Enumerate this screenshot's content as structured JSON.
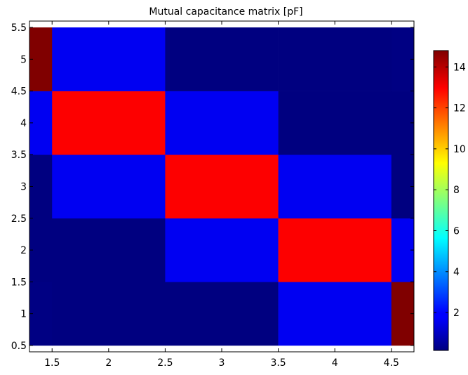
{
  "chart_data": {
    "type": "heatmap",
    "title": "Mutual capacitance matrix [pF]",
    "xlabel": "",
    "ylabel": "",
    "xlim": [
      1.3,
      4.7
    ],
    "ylim": [
      0.4,
      5.6
    ],
    "x_ticks": [
      1.5,
      2,
      2.5,
      3,
      3.5,
      4,
      4.5
    ],
    "x_tick_labels": [
      "1.5",
      "2",
      "2.5",
      "3",
      "3.5",
      "4",
      "4.5"
    ],
    "y_ticks": [
      0.5,
      1,
      1.5,
      2,
      2.5,
      3,
      3.5,
      4,
      4.5,
      5,
      5.5
    ],
    "y_tick_labels": [
      "0.5",
      "1",
      "1.5",
      "2",
      "2.5",
      "3",
      "3.5",
      "4",
      "4.5",
      "5",
      "5.5"
    ],
    "x_edges": [
      1.3,
      1.5,
      2.5,
      3.5,
      4.5,
      4.7
    ],
    "y_edges": [
      0.5,
      1.5,
      2.5,
      3.5,
      4.5,
      5.5
    ],
    "columns": [
      "1",
      "2",
      "3",
      "4",
      "5"
    ],
    "rows": [
      "1",
      "2",
      "3",
      "4",
      "5"
    ],
    "values": [
      [
        0.2,
        0.15,
        0.15,
        1.8,
        14.8
      ],
      [
        0.15,
        0.15,
        1.8,
        13.0,
        1.8
      ],
      [
        0.15,
        1.8,
        13.0,
        1.8,
        0.15
      ],
      [
        1.8,
        13.0,
        1.8,
        0.15,
        0.15
      ],
      [
        14.8,
        1.8,
        0.15,
        0.15,
        0.2
      ]
    ],
    "colorbar": {
      "colormap": "jet",
      "min": 0.15,
      "max": 14.8,
      "ticks": [
        2,
        4,
        6,
        8,
        10,
        12,
        14
      ],
      "tick_labels": [
        "2",
        "4",
        "6",
        "8",
        "10",
        "12",
        "14"
      ]
    },
    "grid": false,
    "legend": "none"
  }
}
